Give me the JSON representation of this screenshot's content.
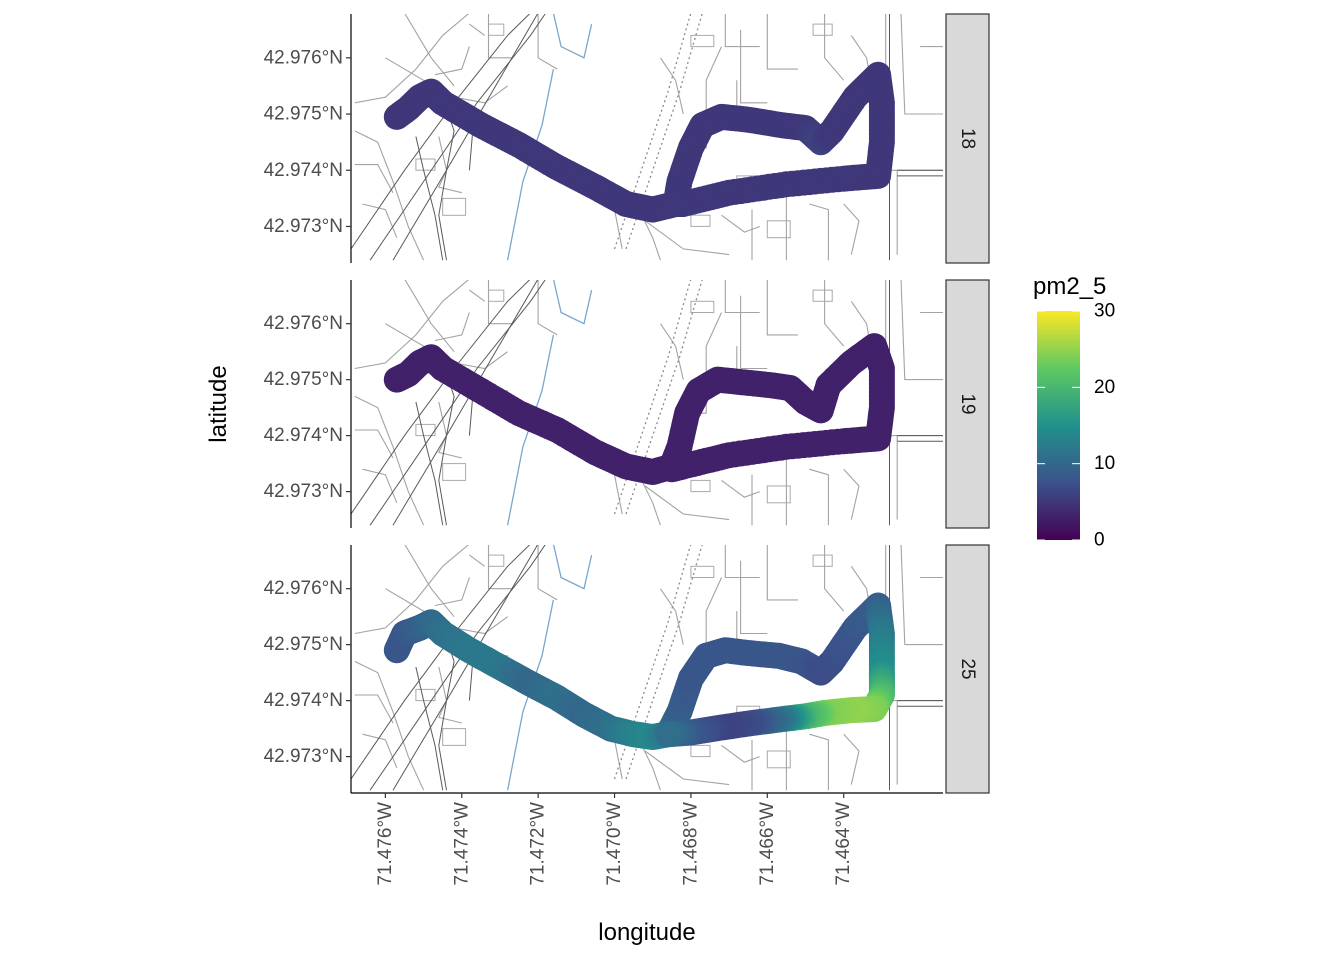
{
  "chart_data": {
    "type": "map",
    "xlabel": "longitude",
    "ylabel": "latitude",
    "x_ticks": [
      "71.476°W",
      "71.474°W",
      "71.472°W",
      "71.470°W",
      "71.468°W",
      "71.466°W",
      "71.464°W"
    ],
    "y_ticks": [
      "42.976°N",
      "42.975°N",
      "42.974°N",
      "42.973°N"
    ],
    "xlim": [
      -71.4769,
      -71.4614
    ],
    "ylim": [
      42.97235,
      42.97678
    ],
    "legend": {
      "title": "pm2_5",
      "position": "right",
      "range": [
        0,
        30
      ],
      "ticks": [
        "0",
        "10",
        "20",
        "30"
      ],
      "colormap": "viridis",
      "colors": [
        "#440154",
        "#3b528b",
        "#21918c",
        "#5ec962",
        "#fde725"
      ]
    },
    "facets": [
      {
        "label": "18",
        "track": [
          [
            -71.4757,
            42.97495,
            5
          ],
          [
            -71.4754,
            42.9751,
            5
          ],
          [
            -71.4751,
            42.9753,
            5
          ],
          [
            -71.4748,
            42.9754,
            5
          ],
          [
            -71.4745,
            42.9752,
            5
          ],
          [
            -71.4735,
            42.9748,
            5
          ],
          [
            -71.4725,
            42.97445,
            5
          ],
          [
            -71.4715,
            42.97405,
            5
          ],
          [
            -71.4705,
            42.9737,
            5
          ],
          [
            -71.4697,
            42.9734,
            5
          ],
          [
            -71.469,
            42.9733,
            5
          ],
          [
            -71.4684,
            42.9734,
            5
          ],
          [
            -71.4683,
            42.9738,
            5
          ],
          [
            -71.468,
            42.9744,
            5
          ],
          [
            -71.4677,
            42.9748,
            5
          ],
          [
            -71.4672,
            42.97495,
            5
          ],
          [
            -71.4665,
            42.9749,
            5
          ],
          [
            -71.4656,
            42.9748,
            5
          ],
          [
            -71.465,
            42.97475,
            5
          ],
          [
            -71.4646,
            42.9745,
            6
          ],
          [
            -71.4643,
            42.9747,
            5
          ],
          [
            -71.4637,
            42.9753,
            5
          ],
          [
            -71.4631,
            42.9757,
            5
          ],
          [
            -71.463,
            42.9752,
            5
          ],
          [
            -71.463,
            42.9745,
            5
          ],
          [
            -71.4631,
            42.9739,
            5
          ],
          [
            -71.464,
            42.97385,
            5
          ],
          [
            -71.4655,
            42.97375,
            5
          ],
          [
            -71.467,
            42.9736,
            5
          ],
          [
            -71.4682,
            42.9734,
            5
          ],
          [
            -71.4684,
            42.9734,
            5
          ]
        ]
      },
      {
        "label": "19",
        "track": [
          [
            -71.4757,
            42.975,
            3
          ],
          [
            -71.4754,
            42.9751,
            3
          ],
          [
            -71.4751,
            42.9753,
            3
          ],
          [
            -71.4748,
            42.9754,
            3
          ],
          [
            -71.4745,
            42.9752,
            3
          ],
          [
            -71.4735,
            42.9748,
            3
          ],
          [
            -71.4725,
            42.9744,
            3
          ],
          [
            -71.4715,
            42.9741,
            3
          ],
          [
            -71.4705,
            42.9737,
            3
          ],
          [
            -71.4697,
            42.97345,
            3
          ],
          [
            -71.469,
            42.97335,
            3
          ],
          [
            -71.4685,
            42.97345,
            3
          ],
          [
            -71.4683,
            42.9738,
            3
          ],
          [
            -71.4681,
            42.9744,
            3
          ],
          [
            -71.4678,
            42.9748,
            3
          ],
          [
            -71.4673,
            42.975,
            3
          ],
          [
            -71.4666,
            42.97495,
            3
          ],
          [
            -71.4659,
            42.9749,
            3
          ],
          [
            -71.4654,
            42.97485,
            3
          ],
          [
            -71.465,
            42.9746,
            3
          ],
          [
            -71.4646,
            42.97445,
            3
          ],
          [
            -71.4644,
            42.9749,
            3
          ],
          [
            -71.4638,
            42.9753,
            3
          ],
          [
            -71.4632,
            42.9756,
            3
          ],
          [
            -71.463,
            42.9752,
            3
          ],
          [
            -71.463,
            42.9745,
            3
          ],
          [
            -71.4631,
            42.97395,
            3
          ],
          [
            -71.464,
            42.9739,
            3
          ],
          [
            -71.4655,
            42.9738,
            3
          ],
          [
            -71.467,
            42.97365,
            3
          ],
          [
            -71.4682,
            42.97345,
            3
          ],
          [
            -71.4685,
            42.9734,
            3
          ]
        ]
      },
      {
        "label": "25",
        "track": [
          [
            -71.4757,
            42.9749,
            8
          ],
          [
            -71.4755,
            42.9752,
            8
          ],
          [
            -71.4751,
            42.9753,
            9
          ],
          [
            -71.4748,
            42.9754,
            10
          ],
          [
            -71.4745,
            42.9752,
            11
          ],
          [
            -71.4738,
            42.9749,
            12
          ],
          [
            -71.473,
            42.9746,
            12
          ],
          [
            -71.4722,
            42.9743,
            10
          ],
          [
            -71.4715,
            42.97405,
            11
          ],
          [
            -71.4708,
            42.97375,
            10
          ],
          [
            -71.4701,
            42.9735,
            11
          ],
          [
            -71.4695,
            42.9734,
            13
          ],
          [
            -71.469,
            42.97335,
            14
          ],
          [
            -71.4686,
            42.9734,
            12
          ],
          [
            -71.4683,
            42.9738,
            9
          ],
          [
            -71.468,
            42.9744,
            8
          ],
          [
            -71.4676,
            42.9748,
            8
          ],
          [
            -71.4671,
            42.9749,
            8
          ],
          [
            -71.4665,
            42.97485,
            8
          ],
          [
            -71.4657,
            42.9748,
            8
          ],
          [
            -71.4651,
            42.9747,
            8
          ],
          [
            -71.4646,
            42.9745,
            7
          ],
          [
            -71.4643,
            42.9747,
            7
          ],
          [
            -71.4637,
            42.9753,
            8
          ],
          [
            -71.4631,
            42.9757,
            9
          ],
          [
            -71.463,
            42.9752,
            12
          ],
          [
            -71.463,
            42.9745,
            15
          ],
          [
            -71.463,
            42.9741,
            20
          ],
          [
            -71.4632,
            42.97385,
            24
          ],
          [
            -71.4638,
            42.97383,
            25
          ],
          [
            -71.4645,
            42.97378,
            24
          ],
          [
            -71.465,
            42.97372,
            20
          ],
          [
            -71.4656,
            42.97367,
            12
          ],
          [
            -71.4664,
            42.9736,
            7
          ],
          [
            -71.4672,
            42.97352,
            6
          ],
          [
            -71.468,
            42.97343,
            8
          ],
          [
            -71.4686,
            42.9734,
            11
          ]
        ]
      }
    ]
  }
}
